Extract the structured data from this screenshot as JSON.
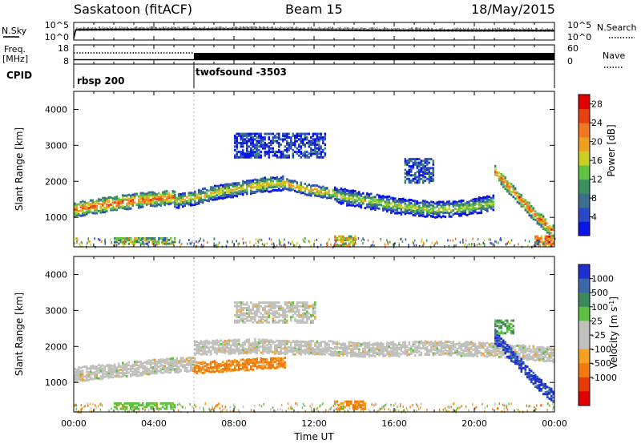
{
  "header": {
    "site": "Saskatoon (fitACF)",
    "beam": "Beam 15",
    "date": "18/May/2015"
  },
  "strip_labels": {
    "nsky": "N.Sky",
    "nsearch": "N.Search",
    "freq_line1": "Freq.",
    "freq_line2": "[MHz]",
    "nave": "Nave",
    "cpid": "CPID"
  },
  "cpid_segments": [
    {
      "label": "rbsp 200",
      "start_hour": 0,
      "end_hour": 6
    },
    {
      "label": "twofsound -3503",
      "start_hour": 6,
      "end_hour": 24
    }
  ],
  "colors": {
    "power_scale": [
      "#0a14e6",
      "#2a48c8",
      "#3c6e8e",
      "#3c9060",
      "#62c244",
      "#c8d020",
      "#f0a020",
      "#f07820",
      "#e84010",
      "#e00000"
    ],
    "velocity_scale": [
      "#2030d0",
      "#3a68a8",
      "#3c8a5c",
      "#5ec040",
      "#c0c0bc",
      "#c0c0bc",
      "#f5a020",
      "#f07a10",
      "#e83c08",
      "#e00000"
    ]
  },
  "chart_data": [
    {
      "type": "line",
      "name": "N.Sky / N.Search strip",
      "y_left_ticks": [
        "10^5",
        "10^0"
      ],
      "y_right_ticks": [
        "10^5",
        "10^0"
      ],
      "x": [
        0,
        0.1,
        1,
        2,
        4,
        6,
        8,
        10,
        12,
        14,
        16,
        18,
        20,
        22,
        24
      ],
      "series": [
        {
          "values": [
            1,
            1000,
            1200,
            1300,
            1400,
            1500,
            1600,
            1200,
            900,
            700,
            600,
            550,
            500,
            520,
            500
          ]
        }
      ]
    },
    {
      "type": "line",
      "name": "Freq / Nave strip",
      "y_left_ticks": [
        "18",
        "8"
      ],
      "y_right_ticks": [
        "60",
        "0"
      ],
      "x": [
        0,
        6,
        6.01,
        24
      ],
      "series": [
        {
          "name": "Freq. [MHz]",
          "values": [
            10.3,
            10.3,
            10.3,
            10.3
          ]
        },
        {
          "name": "Nave",
          "values": [
            35,
            35,
            30,
            30
          ]
        }
      ]
    },
    {
      "type": "heatmap",
      "name": "Power panel",
      "ylabel": "Slant Range [km]",
      "xlim": [
        0,
        24
      ],
      "ylim": [
        180,
        4500
      ],
      "y_ticks": [
        1000,
        2000,
        3000,
        4000
      ],
      "colorbar": {
        "label": "Power [dB]",
        "range": [
          0,
          30
        ],
        "ticks": [
          4,
          8,
          12,
          16,
          20,
          24,
          28
        ]
      },
      "echo_bands": [
        {
          "start_hour": 0.0,
          "end_hour": 5.0,
          "center_km": [
            1250,
            1350,
            1420,
            1500,
            1550,
            1600
          ],
          "width_km": 380,
          "power_dB": 26
        },
        {
          "start_hour": 5.0,
          "end_hour": 10.5,
          "center_km": [
            1500,
            1600,
            1750,
            1850,
            1950,
            2000
          ],
          "width_km": 400,
          "power_dB": 20
        },
        {
          "start_hour": 10.5,
          "end_hour": 13.0,
          "center_km": [
            1980,
            1800,
            1700
          ],
          "width_km": 300,
          "power_dB": 22
        },
        {
          "start_hour": 13.0,
          "end_hour": 21.0,
          "center_km": [
            1650,
            1500,
            1350,
            1250,
            1300,
            1450
          ],
          "width_km": 420,
          "power_dB": 18
        },
        {
          "start_hour": 21.0,
          "end_hour": 24.0,
          "center_km": [
            2300,
            1700,
            1100,
            600
          ],
          "width_km": 350,
          "power_dB": 26
        }
      ],
      "patches": [
        {
          "hour_range": [
            2.0,
            5.0
          ],
          "km_range": [
            300,
            500
          ],
          "power_dB": 18
        },
        {
          "hour_range": [
            8.0,
            12.5
          ],
          "km_range": [
            2700,
            3400
          ],
          "power_dB": 8
        },
        {
          "hour_range": [
            13.0,
            14.0
          ],
          "km_range": [
            250,
            550
          ],
          "power_dB": 24
        },
        {
          "hour_range": [
            16.5,
            18.0
          ],
          "km_range": [
            2000,
            2700
          ],
          "power_dB": 10
        },
        {
          "hour_range": [
            23.0,
            24.0
          ],
          "km_range": [
            250,
            550
          ],
          "power_dB": 28
        }
      ]
    },
    {
      "type": "heatmap",
      "name": "Velocity panel",
      "ylabel": "Slant Range [km]",
      "xlabel": "Time UT",
      "xlim": [
        0,
        24
      ],
      "ylim": [
        180,
        4500
      ],
      "x_ticks": [
        "00:00",
        "04:00",
        "08:00",
        "12:00",
        "16:00",
        "20:00",
        "00:00"
      ],
      "y_ticks": [
        1000,
        2000,
        3000,
        4000
      ],
      "colorbar": {
        "label": "Velocity [m s^-1]",
        "ticks": [
          1000,
          500,
          100,
          25,
          -25,
          -100,
          -500,
          -1000
        ]
      },
      "echo_bands": [
        {
          "start_hour": 0.0,
          "end_hour": 6.0,
          "center_km": [
            1250,
            1350,
            1420,
            1500,
            1550
          ],
          "width_km": 380,
          "velocity": 0
        },
        {
          "start_hour": 6.0,
          "end_hour": 10.5,
          "center_km": [
            1450,
            1500,
            1550,
            1600
          ],
          "width_km": 300,
          "velocity": -300
        },
        {
          "start_hour": 6.0,
          "end_hour": 24.0,
          "center_km": [
            2000,
            2050,
            2000,
            1950,
            2000,
            1950,
            1800
          ],
          "width_km": 380,
          "velocity": 0
        },
        {
          "start_hour": 21.0,
          "end_hour": 24.0,
          "center_km": [
            2300,
            1700,
            1100,
            600
          ],
          "width_km": 350,
          "velocity": 700
        }
      ],
      "patches": [
        {
          "hour_range": [
            2.0,
            5.0
          ],
          "km_range": [
            300,
            480
          ],
          "velocity": 80
        },
        {
          "hour_range": [
            13.0,
            14.5
          ],
          "km_range": [
            300,
            550
          ],
          "velocity": -300
        },
        {
          "hour_range": [
            8.0,
            12.0
          ],
          "km_range": [
            2700,
            3300
          ],
          "velocity": 0
        },
        {
          "hour_range": [
            21.0,
            22.0
          ],
          "km_range": [
            2400,
            2800
          ],
          "velocity": 150
        }
      ]
    }
  ]
}
